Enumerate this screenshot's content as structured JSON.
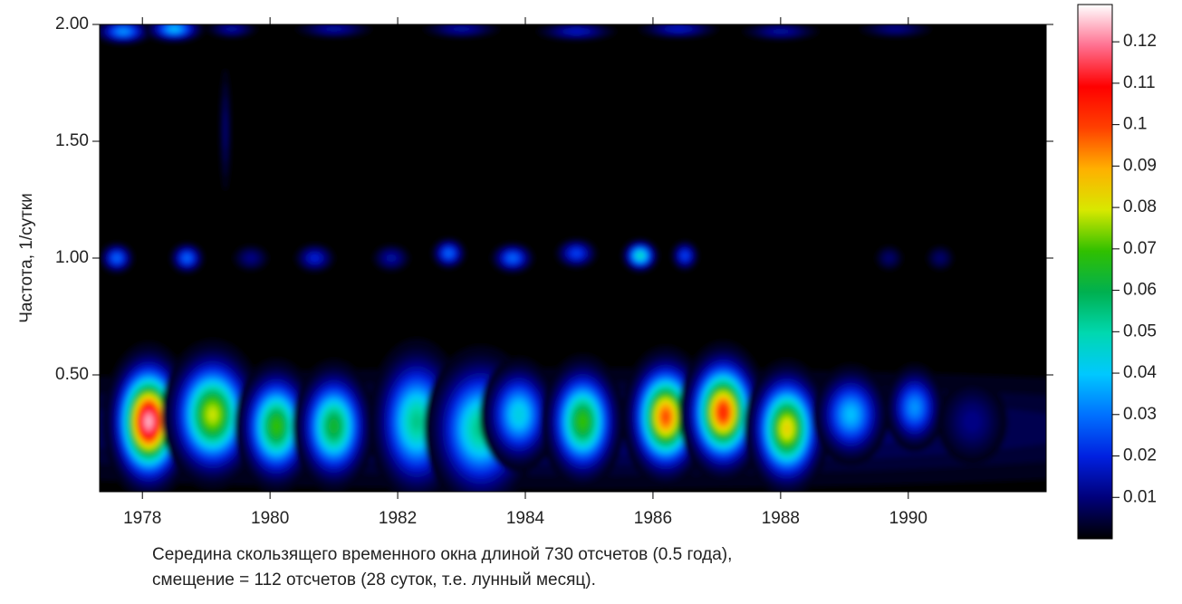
{
  "chart_data": {
    "type": "heatmap",
    "ylabel": "Частота, 1/сутки",
    "xlabel": [
      "Середина скользящего временного окна длиной 730 отсчетов (0.5 года),",
      "смещение = 112 отсчетов (28 суток, т.е. лунный месяц)."
    ],
    "xlim": [
      1977.33,
      1992.16
    ],
    "xticks": [
      1978,
      1980,
      1982,
      1984,
      1986,
      1988,
      1990
    ],
    "ylim": [
      0,
      2.0
    ],
    "yticks": [
      {
        "value": 0.5,
        "label": "0.50"
      },
      {
        "value": 1.0,
        "label": "1.00"
      },
      {
        "value": 1.5,
        "label": "1.50"
      },
      {
        "value": 2.0,
        "label": "2.00"
      }
    ],
    "clim": [
      0,
      0.129
    ],
    "cticks": [
      0.01,
      0.02,
      0.03,
      0.04,
      0.05,
      0.06,
      0.07,
      0.08,
      0.09,
      0.1,
      0.11,
      0.12
    ],
    "colormap": [
      "#000000",
      "#00007a",
      "#0020e0",
      "#0070ff",
      "#00c8ff",
      "#00d8b0",
      "#00b050",
      "#30c000",
      "#d8e800",
      "#ffb000",
      "#ff4000",
      "#ff0000",
      "#ff7090",
      "#ffffff"
    ],
    "spots": [
      {
        "x": 1984.5,
        "y": 0.27,
        "value": 0.012,
        "sx": 7.5,
        "sy": 0.14
      },
      {
        "x": 1978.1,
        "y": 0.3,
        "value": 0.125,
        "sx": 0.25,
        "sy": 0.12
      },
      {
        "x": 1979.1,
        "y": 0.33,
        "value": 0.08,
        "sx": 0.3,
        "sy": 0.12
      },
      {
        "x": 1980.1,
        "y": 0.28,
        "value": 0.07,
        "sx": 0.25,
        "sy": 0.11
      },
      {
        "x": 1981.0,
        "y": 0.28,
        "value": 0.065,
        "sx": 0.25,
        "sy": 0.11
      },
      {
        "x": 1982.3,
        "y": 0.3,
        "value": 0.055,
        "sx": 0.3,
        "sy": 0.14
      },
      {
        "x": 1983.3,
        "y": 0.27,
        "value": 0.055,
        "sx": 0.35,
        "sy": 0.14
      },
      {
        "x": 1983.9,
        "y": 0.33,
        "value": 0.045,
        "sx": 0.25,
        "sy": 0.1
      },
      {
        "x": 1984.9,
        "y": 0.3,
        "value": 0.07,
        "sx": 0.25,
        "sy": 0.11
      },
      {
        "x": 1986.2,
        "y": 0.32,
        "value": 0.1,
        "sx": 0.25,
        "sy": 0.11
      },
      {
        "x": 1987.1,
        "y": 0.34,
        "value": 0.105,
        "sx": 0.25,
        "sy": 0.11
      },
      {
        "x": 1988.1,
        "y": 0.27,
        "value": 0.085,
        "sx": 0.25,
        "sy": 0.11
      },
      {
        "x": 1989.1,
        "y": 0.33,
        "value": 0.04,
        "sx": 0.25,
        "sy": 0.09
      },
      {
        "x": 1990.1,
        "y": 0.36,
        "value": 0.035,
        "sx": 0.2,
        "sy": 0.08
      },
      {
        "x": 1991.0,
        "y": 0.3,
        "value": 0.012,
        "sx": 0.3,
        "sy": 0.1
      },
      {
        "x": 1977.6,
        "y": 1.0,
        "value": 0.03,
        "sx": 0.12,
        "sy": 0.03
      },
      {
        "x": 1978.7,
        "y": 1.0,
        "value": 0.03,
        "sx": 0.12,
        "sy": 0.03
      },
      {
        "x": 1979.7,
        "y": 1.0,
        "value": 0.012,
        "sx": 0.15,
        "sy": 0.03
      },
      {
        "x": 1980.7,
        "y": 1.0,
        "value": 0.02,
        "sx": 0.15,
        "sy": 0.03
      },
      {
        "x": 1981.9,
        "y": 1.0,
        "value": 0.015,
        "sx": 0.15,
        "sy": 0.03
      },
      {
        "x": 1982.8,
        "y": 1.02,
        "value": 0.03,
        "sx": 0.12,
        "sy": 0.03
      },
      {
        "x": 1983.8,
        "y": 1.0,
        "value": 0.03,
        "sx": 0.15,
        "sy": 0.03
      },
      {
        "x": 1984.8,
        "y": 1.02,
        "value": 0.025,
        "sx": 0.15,
        "sy": 0.03
      },
      {
        "x": 1985.8,
        "y": 1.01,
        "value": 0.05,
        "sx": 0.12,
        "sy": 0.03
      },
      {
        "x": 1986.5,
        "y": 1.01,
        "value": 0.025,
        "sx": 0.1,
        "sy": 0.03
      },
      {
        "x": 1989.7,
        "y": 1.0,
        "value": 0.01,
        "sx": 0.12,
        "sy": 0.03
      },
      {
        "x": 1990.5,
        "y": 1.0,
        "value": 0.01,
        "sx": 0.12,
        "sy": 0.03
      },
      {
        "x": 1977.7,
        "y": 1.97,
        "value": 0.035,
        "sx": 0.2,
        "sy": 0.025
      },
      {
        "x": 1978.5,
        "y": 1.98,
        "value": 0.04,
        "sx": 0.2,
        "sy": 0.025
      },
      {
        "x": 1979.4,
        "y": 1.98,
        "value": 0.015,
        "sx": 0.2,
        "sy": 0.02
      },
      {
        "x": 1981.0,
        "y": 1.98,
        "value": 0.015,
        "sx": 0.3,
        "sy": 0.02
      },
      {
        "x": 1983.0,
        "y": 1.98,
        "value": 0.015,
        "sx": 0.3,
        "sy": 0.02
      },
      {
        "x": 1984.8,
        "y": 1.97,
        "value": 0.018,
        "sx": 0.3,
        "sy": 0.02
      },
      {
        "x": 1986.4,
        "y": 1.98,
        "value": 0.018,
        "sx": 0.3,
        "sy": 0.02
      },
      {
        "x": 1988.0,
        "y": 1.97,
        "value": 0.015,
        "sx": 0.3,
        "sy": 0.02
      },
      {
        "x": 1989.8,
        "y": 1.98,
        "value": 0.012,
        "sx": 0.3,
        "sy": 0.02
      },
      {
        "x": 1979.3,
        "y": 1.55,
        "value": 0.01,
        "sx": 0.05,
        "sy": 0.15
      }
    ]
  }
}
